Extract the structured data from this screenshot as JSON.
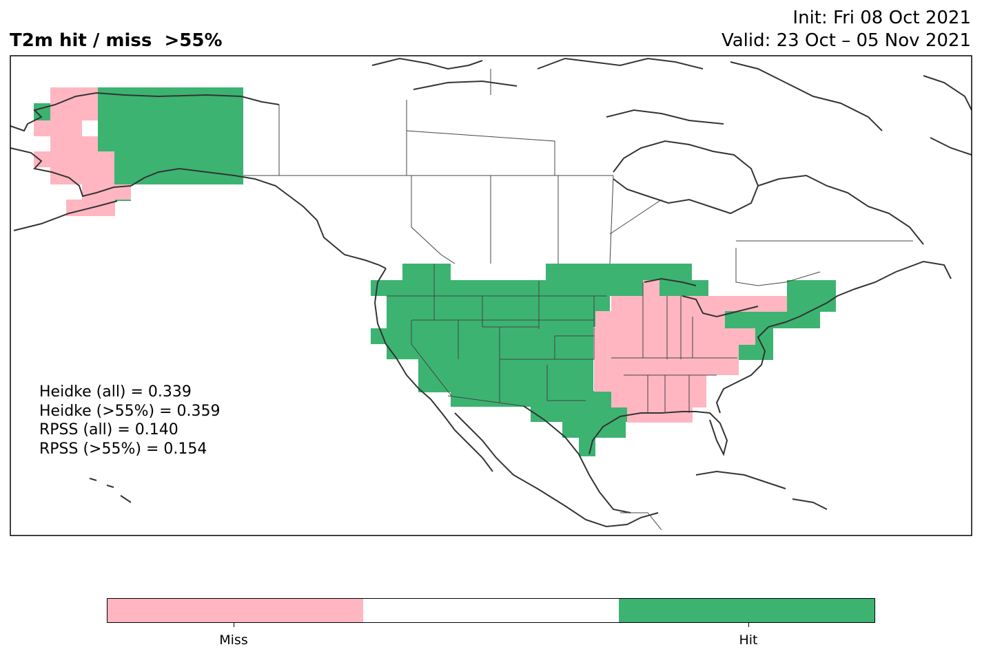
{
  "title": {
    "left": "T2m hit / miss  >55%",
    "init": "Init: Fri 08 Oct 2021",
    "valid": "Valid: 23 Oct – 05 Nov 2021"
  },
  "colors": {
    "miss": "#ffb6c1",
    "neutral": "#ffffff",
    "hit": "#3cb371",
    "coast": "#333333",
    "border": "#444444"
  },
  "stats": {
    "heidke_all": "Heidke (all) = 0.339",
    "heidke_55": "Heidke (>55%) = 0.359",
    "rpss_all": "RPSS (all) = 0.140",
    "rpss_55": "RPSS (>55%) = 0.154"
  },
  "colorbar": {
    "categories": [
      "Miss",
      "",
      "Hit"
    ],
    "miss_label": "Miss",
    "hit_label": "Hit"
  },
  "regions": {
    "alaska": {
      "hit": "Hit",
      "miss": "Miss"
    },
    "conus_west": "Hit",
    "conus_east": "Miss",
    "northeast": "Hit"
  }
}
